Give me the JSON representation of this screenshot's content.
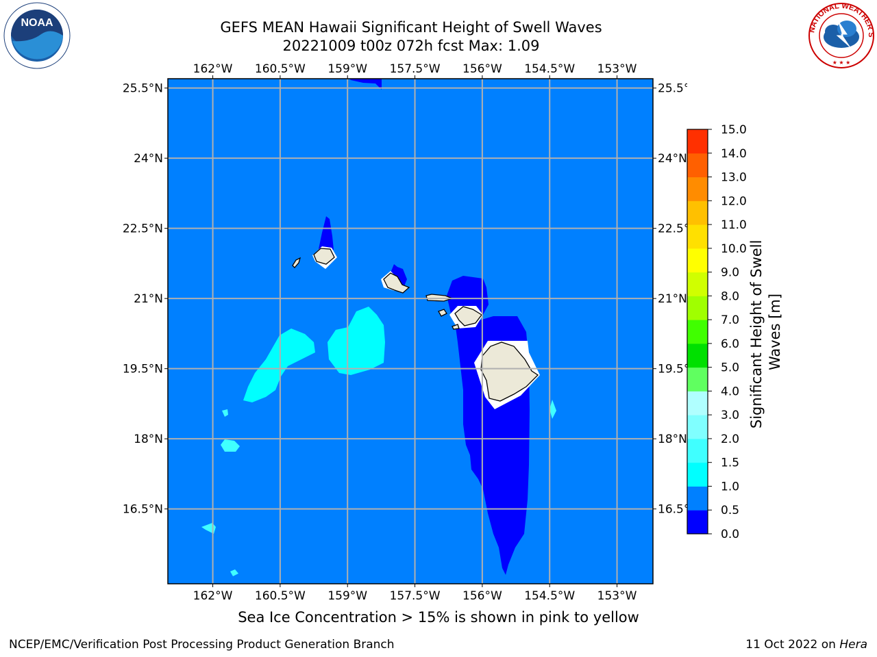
{
  "title": {
    "line1": "GEFS MEAN Hawaii Significant Height of Swell Waves",
    "line2": "20221009 t00z 072h fcst   Max: 1.09"
  },
  "map": {
    "lon_ticks": [
      "162°W",
      "160.5°W",
      "159°W",
      "157.5°W",
      "156°W",
      "154.5°W",
      "153°W"
    ],
    "lat_ticks": [
      "25.5°N",
      "24°N",
      "22.5°N",
      "21°N",
      "19.5°N",
      "18°N",
      "16.5°N"
    ],
    "lon_range": [
      -163,
      -152.2
    ],
    "lat_range": [
      14.9,
      25.7
    ],
    "grid": true,
    "background_fill_color": "#0080ff",
    "islands": [
      "Niihau",
      "Kauai",
      "Oahu",
      "Molokai",
      "Maui",
      "Hawaii"
    ]
  },
  "colorbar": {
    "label": "Significant Height of Swell Waves [m]",
    "tick_labels": [
      "0.0",
      "0.5",
      "1.0",
      "1.5",
      "2.0",
      "3.0",
      "4.0",
      "5.0",
      "6.0",
      "7.0",
      "8.0",
      "9.0",
      "10.0",
      "11.0",
      "12.0",
      "13.0",
      "14.0",
      "15.0"
    ],
    "colors": [
      "#0000ff",
      "#0080ff",
      "#00ffff",
      "#40ffff",
      "#80ffff",
      "#b0ffff",
      "#60ff60",
      "#00e000",
      "#40ff00",
      "#a0ff00",
      "#d0ff00",
      "#ffff00",
      "#ffe000",
      "#ffc000",
      "#ff8c00",
      "#ff6000",
      "#ff3000",
      "#ff0000"
    ]
  },
  "footer": {
    "note": "Sea Ice Concentration > 15% is shown in pink to yellow",
    "credit_left": "NCEP/EMC/Verification Post Processing Product Generation Branch",
    "credit_date": "11 Oct 2022 on ",
    "credit_host": "Hera"
  },
  "logos": {
    "noaa_text": "NOAA",
    "nws_text": "NATIONAL WEATHER SERVICE"
  }
}
